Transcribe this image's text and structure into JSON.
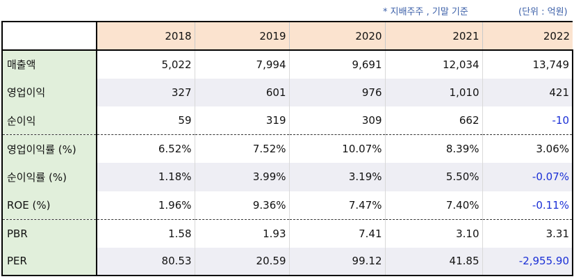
{
  "notes": {
    "basis": "* 지배주주 , 기말 기준",
    "unit": "(단위 : 억원)"
  },
  "header": {
    "corner": "",
    "years": [
      "2018",
      "2019",
      "2020",
      "2021",
      "2022"
    ]
  },
  "rows": [
    {
      "label": "매출액",
      "values": [
        "5,022",
        "7,994",
        "9,691",
        "12,034",
        "13,749"
      ]
    },
    {
      "label": "영업이익",
      "values": [
        "327",
        "601",
        "976",
        "1,010",
        "421"
      ]
    },
    {
      "label": "순이익",
      "values": [
        "59",
        "319",
        "309",
        "662",
        "-10"
      ]
    },
    {
      "label": "영업이익률 (%)",
      "values": [
        "6.52%",
        "7.52%",
        "10.07%",
        "8.39%",
        "3.06%"
      ]
    },
    {
      "label": "순이익률 (%)",
      "values": [
        "1.18%",
        "3.99%",
        "3.19%",
        "5.50%",
        "-0.07%"
      ]
    },
    {
      "label": "ROE (%)",
      "values": [
        "1.96%",
        "9.36%",
        "7.47%",
        "7.40%",
        "-0.11%"
      ]
    },
    {
      "label": "PBR",
      "values": [
        "1.58",
        "1.93",
        "7.41",
        "3.10",
        "3.31"
      ]
    },
    {
      "label": "PER",
      "values": [
        "80.53",
        "20.59",
        "99.12",
        "41.85",
        "-2,955.90"
      ]
    }
  ],
  "colors": {
    "header_bg": "#fbe3cf",
    "label_bg": "#e1efdb",
    "stripe_bg": "#eeeef4",
    "negative": "#1a2fd6",
    "note_text": "#3b5fa8"
  }
}
